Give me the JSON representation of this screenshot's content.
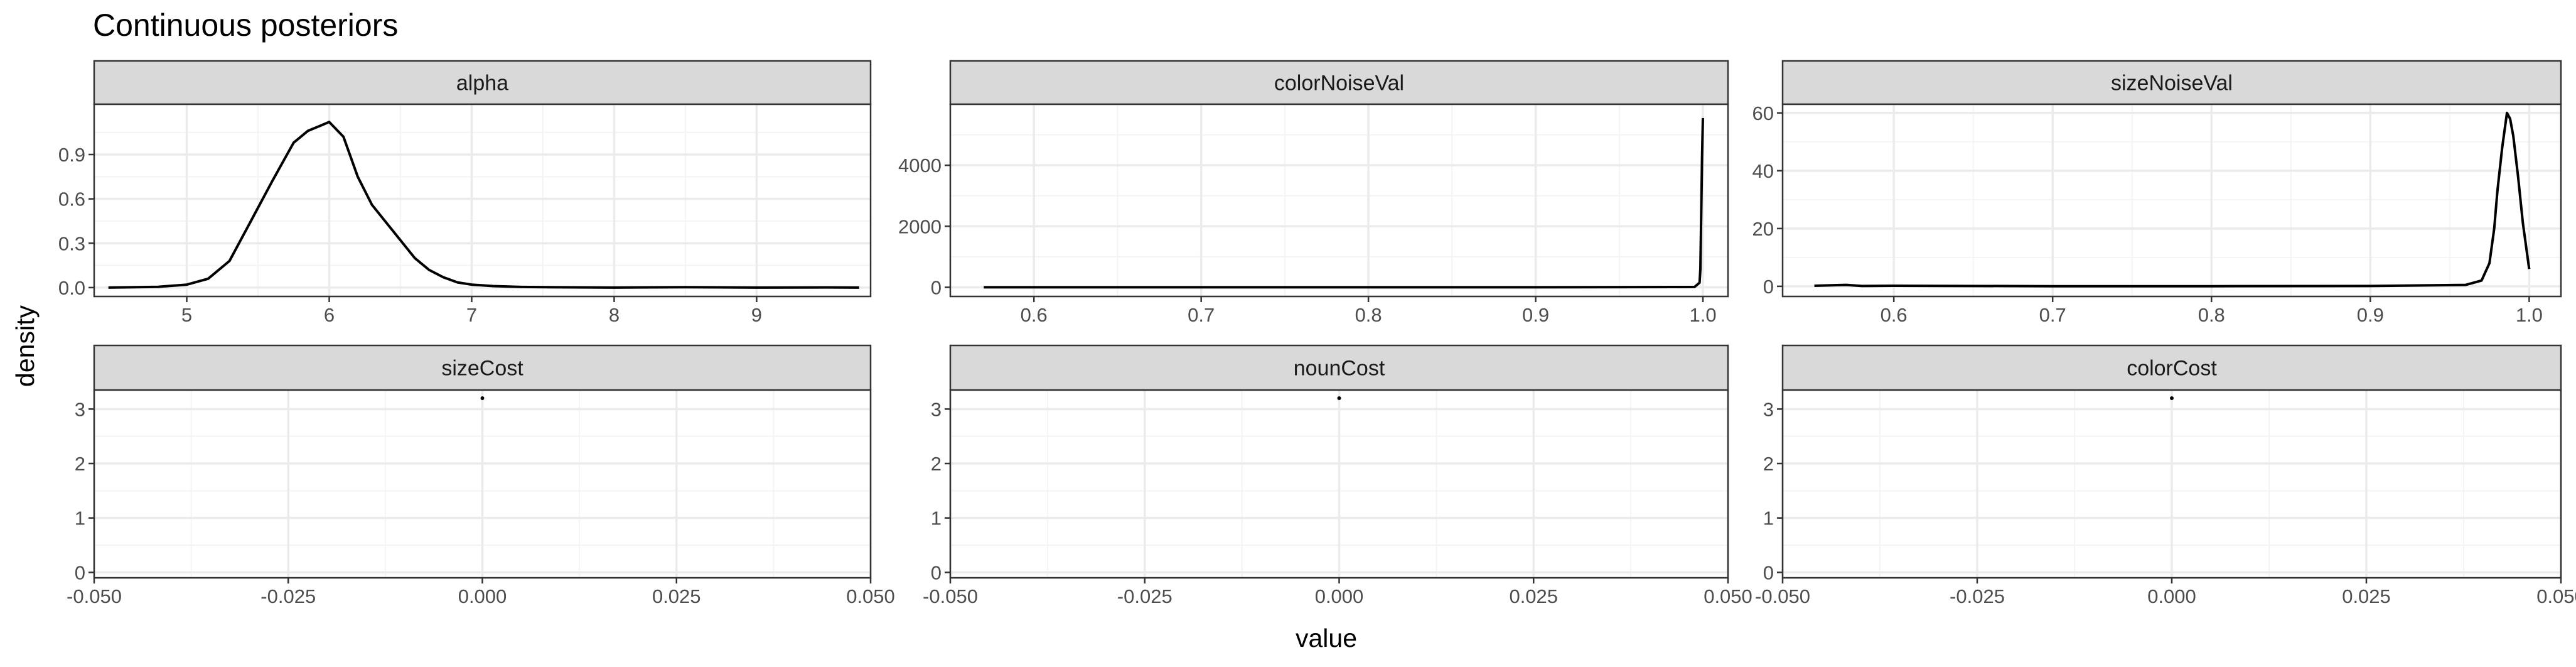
{
  "chart_data": {
    "type": "line",
    "title": "Continuous posteriors",
    "xlabel": "value",
    "ylabel": "density",
    "grid": true,
    "facet_layout": "2 rows x 3 columns",
    "x_scale": "free",
    "y_scale": "free",
    "panels": [
      {
        "name": "alpha",
        "xlim": [
          4.35,
          9.8
        ],
        "ylim": [
          -0.06,
          1.24
        ],
        "x_ticks": [
          5,
          6,
          7,
          8,
          9
        ],
        "x_tick_labels": [
          "5",
          "6",
          "7",
          "8",
          "9"
        ],
        "y_ticks": [
          0,
          0.3,
          0.6,
          0.9
        ],
        "y_tick_labels": [
          "0.0",
          "0.3",
          "0.6",
          "0.9"
        ],
        "series": [
          {
            "x": [
              4.45,
              4.8,
              5.0,
              5.15,
              5.3,
              5.45,
              5.6,
              5.75,
              5.85,
              5.95,
              6.0,
              6.1,
              6.2,
              6.3,
              6.45,
              6.6,
              6.7,
              6.8,
              6.9,
              7.0,
              7.15,
              7.35,
              7.6,
              8.0,
              8.5,
              9.0,
              9.5,
              9.72
            ],
            "y": [
              0.0,
              0.005,
              0.02,
              0.06,
              0.18,
              0.45,
              0.72,
              0.98,
              1.06,
              1.1,
              1.12,
              1.02,
              0.75,
              0.56,
              0.38,
              0.2,
              0.12,
              0.07,
              0.035,
              0.02,
              0.01,
              0.004,
              0.002,
              0.0,
              0.003,
              0.0,
              0.001,
              0.0
            ]
          }
        ]
      },
      {
        "name": "colorNoiseVal",
        "xlim": [
          0.55,
          1.015
        ],
        "ylim": [
          -300,
          6000
        ],
        "x_ticks": [
          0.6,
          0.7,
          0.8,
          0.9,
          1.0
        ],
        "x_tick_labels": [
          "0.6",
          "0.7",
          "0.8",
          "0.9",
          "1.0"
        ],
        "y_ticks": [
          0,
          2000,
          4000
        ],
        "y_tick_labels": [
          "0",
          "2000",
          "4000"
        ],
        "series": [
          {
            "x": [
              0.57,
              0.7,
              0.8,
              0.9,
              0.995,
              0.998,
              0.9985,
              0.999,
              0.9995,
              1.0
            ],
            "y": [
              0,
              0,
              0,
              0,
              10,
              150,
              600,
              2500,
              4300,
              5550
            ]
          }
        ]
      },
      {
        "name": "sizeNoiseVal",
        "xlim": [
          0.53,
          1.02
        ],
        "ylim": [
          -3.5,
          63
        ],
        "x_ticks": [
          0.6,
          0.7,
          0.8,
          0.9,
          1.0
        ],
        "x_tick_labels": [
          "0.6",
          "0.7",
          "0.8",
          "0.9",
          "1.0"
        ],
        "y_ticks": [
          0,
          20,
          40,
          60
        ],
        "y_tick_labels": [
          "0",
          "20",
          "40",
          "60"
        ],
        "series": [
          {
            "x": [
              0.55,
              0.57,
              0.58,
              0.6,
              0.7,
              0.8,
              0.9,
              0.96,
              0.97,
              0.975,
              0.978,
              0.98,
              0.983,
              0.986,
              0.988,
              0.99,
              0.993,
              0.996,
              1.0
            ],
            "y": [
              0.2,
              0.5,
              0.1,
              0.2,
              0.05,
              0.05,
              0.1,
              0.5,
              2,
              8,
              20,
              33,
              48,
              60,
              58,
              52,
              38,
              22,
              6
            ]
          }
        ]
      },
      {
        "name": "sizeCost",
        "xlim": [
          -0.05,
          0.05
        ],
        "ylim": [
          -0.1,
          3.35
        ],
        "x_ticks": [
          -0.05,
          -0.025,
          0,
          0.025,
          0.05
        ],
        "x_tick_labels": [
          "-0.050",
          "-0.025",
          "0.000",
          "0.025",
          "0.050"
        ],
        "y_ticks": [
          0,
          1,
          2,
          3
        ],
        "y_tick_labels": [
          "0",
          "1",
          "2",
          "3"
        ],
        "points": [
          {
            "x": 0,
            "y": 3.2
          }
        ]
      },
      {
        "name": "nounCost",
        "xlim": [
          -0.05,
          0.05
        ],
        "ylim": [
          -0.1,
          3.35
        ],
        "x_ticks": [
          -0.05,
          -0.025,
          0,
          0.025,
          0.05
        ],
        "x_tick_labels": [
          "-0.050",
          "-0.025",
          "0.000",
          "0.025",
          "0.050"
        ],
        "y_ticks": [
          0,
          1,
          2,
          3
        ],
        "y_tick_labels": [
          "0",
          "1",
          "2",
          "3"
        ],
        "points": [
          {
            "x": 0,
            "y": 3.2
          }
        ]
      },
      {
        "name": "colorCost",
        "xlim": [
          -0.05,
          0.05
        ],
        "ylim": [
          -0.1,
          3.35
        ],
        "x_ticks": [
          -0.05,
          -0.025,
          0,
          0.025,
          0.05
        ],
        "x_tick_labels": [
          "-0.050",
          "-0.025",
          "0.000",
          "0.025",
          "0.050"
        ],
        "y_ticks": [
          0,
          1,
          2,
          3
        ],
        "y_tick_labels": [
          "0",
          "1",
          "2",
          "3"
        ],
        "points": [
          {
            "x": 0,
            "y": 3.2
          }
        ]
      }
    ]
  },
  "colors": {
    "strip_fill": "#d9d9d9",
    "strip_border": "#333333",
    "panel_border": "#333333",
    "grid_major": "#ebebeb",
    "grid_minor": "#f4f4f4",
    "line": "#000000"
  }
}
